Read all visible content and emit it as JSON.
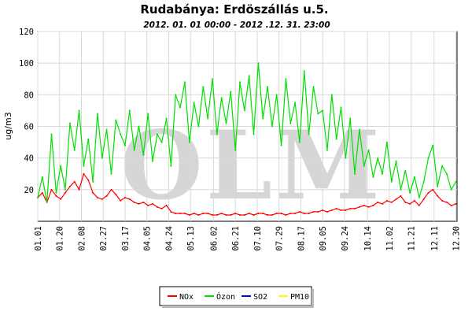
{
  "chart_data": {
    "type": "line",
    "title": "Rudabánya: Erdöszállás u.5.",
    "subtitle": "2012. 01. 01 00:00 - 2012 .12. 31. 23:00",
    "ylabel": "ug/m3",
    "xlabel": "",
    "ylim": [
      0,
      120
    ],
    "yticks": [
      20,
      40,
      60,
      80,
      100,
      120
    ],
    "x_day_range": [
      0,
      365
    ],
    "xticks": [
      {
        "label": "01.01",
        "day": 0
      },
      {
        "label": "01.20",
        "day": 19
      },
      {
        "label": "02.08",
        "day": 38
      },
      {
        "label": "02.27",
        "day": 57
      },
      {
        "label": "03.17",
        "day": 76
      },
      {
        "label": "04.05",
        "day": 95
      },
      {
        "label": "04.24",
        "day": 114
      },
      {
        "label": "05.13",
        "day": 133
      },
      {
        "label": "06.02",
        "day": 153
      },
      {
        "label": "06.21",
        "day": 172
      },
      {
        "label": "07.10",
        "day": 191
      },
      {
        "label": "07.29",
        "day": 210
      },
      {
        "label": "08.17",
        "day": 229
      },
      {
        "label": "09.05",
        "day": 248
      },
      {
        "label": "09.24",
        "day": 267
      },
      {
        "label": "10.14",
        "day": 287
      },
      {
        "label": "11.02",
        "day": 306
      },
      {
        "label": "11.21",
        "day": 325
      },
      {
        "label": "12.11",
        "day": 345
      },
      {
        "label": "12.30",
        "day": 364
      }
    ],
    "grid": true,
    "legend_position": "bottom-center",
    "watermark": "OLM",
    "series": [
      {
        "name": "NOx",
        "color": "#ff0000",
        "x": [
          0,
          4,
          8,
          12,
          16,
          20,
          24,
          28,
          32,
          36,
          40,
          44,
          48,
          52,
          56,
          60,
          64,
          68,
          72,
          76,
          80,
          84,
          88,
          92,
          96,
          100,
          104,
          108,
          112,
          116,
          120,
          124,
          128,
          132,
          136,
          140,
          144,
          148,
          152,
          156,
          160,
          164,
          168,
          172,
          176,
          180,
          184,
          188,
          192,
          196,
          200,
          204,
          208,
          212,
          216,
          220,
          224,
          228,
          232,
          236,
          240,
          244,
          248,
          252,
          256,
          260,
          264,
          268,
          272,
          276,
          280,
          284,
          288,
          292,
          296,
          300,
          304,
          308,
          312,
          316,
          320,
          324,
          328,
          332,
          336,
          340,
          344,
          348,
          352,
          356,
          360,
          364
        ],
        "values": [
          15,
          18,
          12,
          20,
          16,
          14,
          18,
          22,
          25,
          20,
          30,
          26,
          18,
          15,
          14,
          16,
          20,
          17,
          13,
          15,
          14,
          12,
          11,
          12,
          10,
          11,
          9,
          8,
          10,
          6,
          5,
          5,
          5,
          4,
          5,
          4,
          5,
          5,
          4,
          4,
          5,
          4,
          4,
          5,
          4,
          4,
          5,
          4,
          5,
          5,
          4,
          4,
          5,
          5,
          4,
          5,
          5,
          6,
          5,
          5,
          6,
          6,
          7,
          6,
          7,
          8,
          7,
          7,
          8,
          8,
          9,
          10,
          9,
          10,
          12,
          11,
          13,
          12,
          14,
          16,
          12,
          11,
          13,
          10,
          14,
          18,
          20,
          16,
          13,
          12,
          10,
          11
        ]
      },
      {
        "name": "Ózon",
        "color": "#00e000",
        "x": [
          0,
          4,
          8,
          12,
          16,
          20,
          24,
          28,
          32,
          36,
          40,
          44,
          48,
          52,
          56,
          60,
          64,
          68,
          72,
          76,
          80,
          84,
          88,
          92,
          96,
          100,
          104,
          108,
          112,
          116,
          120,
          124,
          128,
          132,
          136,
          140,
          144,
          148,
          152,
          156,
          160,
          164,
          168,
          172,
          176,
          180,
          184,
          188,
          192,
          196,
          200,
          204,
          208,
          212,
          216,
          220,
          224,
          228,
          232,
          236,
          240,
          244,
          248,
          252,
          256,
          260,
          264,
          268,
          272,
          276,
          280,
          284,
          288,
          292,
          296,
          300,
          304,
          308,
          312,
          316,
          320,
          324,
          328,
          332,
          336,
          340,
          344,
          348,
          352,
          356,
          360,
          364
        ],
        "values": [
          15,
          28,
          12,
          55,
          18,
          35,
          20,
          62,
          45,
          70,
          35,
          52,
          25,
          68,
          40,
          58,
          30,
          64,
          55,
          48,
          70,
          45,
          60,
          42,
          68,
          38,
          55,
          50,
          65,
          35,
          80,
          72,
          88,
          50,
          75,
          60,
          85,
          65,
          90,
          55,
          78,
          62,
          82,
          45,
          88,
          70,
          92,
          55,
          100,
          65,
          85,
          60,
          80,
          48,
          90,
          62,
          75,
          50,
          95,
          55,
          85,
          68,
          70,
          45,
          80,
          52,
          72,
          40,
          65,
          30,
          58,
          35,
          45,
          28,
          40,
          30,
          50,
          25,
          38,
          20,
          32,
          18,
          28,
          15,
          25,
          40,
          48,
          22,
          35,
          30,
          20,
          25
        ]
      },
      {
        "name": "SO2",
        "color": "#0000ff",
        "x": [],
        "values": []
      },
      {
        "name": "PM10",
        "color": "#ffff00",
        "x": [],
        "values": []
      }
    ]
  }
}
